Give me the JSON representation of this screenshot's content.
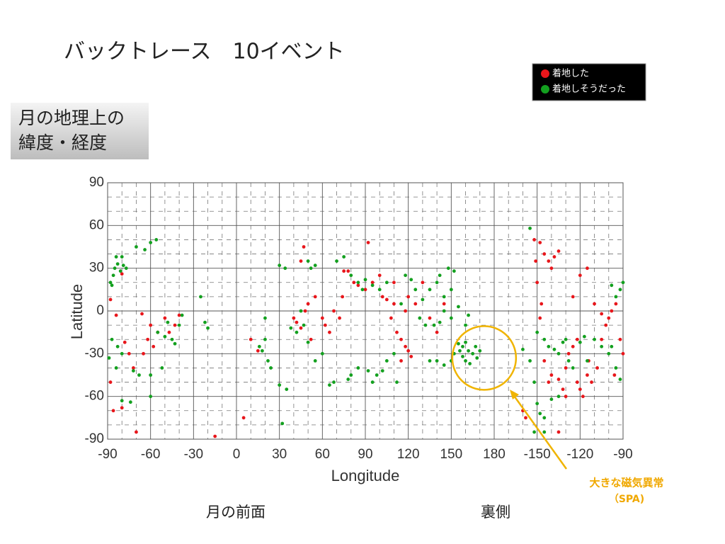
{
  "chart_data": {
    "type": "scatter",
    "title": "バックトレース　10イベント",
    "subtitle_box": [
      "月の地理上の",
      "緯度・経度"
    ],
    "xlabel": "Longitude",
    "ylabel": "Latitude",
    "annotations": {
      "anomaly": "大きな磁気異常",
      "anomaly_sub": "（SPA)",
      "near_side": "月の前面",
      "far_side": "裏側"
    },
    "xlim": [
      -90,
      270
    ],
    "ylim": [
      -90,
      90
    ],
    "xticks": [
      -90,
      -60,
      -30,
      0,
      30,
      60,
      90,
      120,
      150,
      180,
      {
        "value": 210,
        "label": "-150"
      },
      {
        "value": 240,
        "label": "-120"
      },
      {
        "value": 270,
        "label": "-90"
      }
    ],
    "yticks": [
      -90,
      -60,
      -30,
      0,
      30,
      60,
      90
    ],
    "grid": true,
    "legend": "upper right",
    "series": [
      {
        "name": "着地した",
        "color": "#e8161b",
        "x": [
          -88,
          -86,
          -80,
          -70,
          -84,
          -78,
          -75,
          -72,
          -66,
          -60,
          -58,
          -55,
          -50,
          -47,
          -43,
          -40,
          -62,
          -65,
          -80,
          -88,
          -15,
          5,
          10,
          15,
          40,
          42,
          45,
          48,
          50,
          52,
          55,
          47,
          45,
          60,
          62,
          65,
          68,
          72,
          74,
          75,
          78,
          82,
          85,
          90,
          92,
          95,
          100,
          102,
          105,
          108,
          110,
          112,
          115,
          118,
          120,
          122,
          115,
          118,
          120,
          125,
          110,
          130,
          135,
          140,
          145,
          200,
          202,
          208,
          212,
          215,
          218,
          220,
          222,
          225,
          210,
          212,
          215,
          218,
          220,
          225,
          228,
          230,
          232,
          235,
          238,
          240,
          242,
          245,
          248,
          252,
          255,
          258,
          260,
          262,
          265,
          268,
          270,
          264,
          246,
          238,
          225,
          230,
          235,
          240,
          245,
          250,
          255,
          213,
          209
        ],
        "values": [
          -50,
          -70,
          -68,
          -85,
          -3,
          -22,
          -30,
          -40,
          -2,
          -10,
          -25,
          -15,
          -5,
          -15,
          -10,
          -3,
          -20,
          -30,
          26,
          8,
          -88,
          -75,
          -20,
          -28,
          -5,
          -8,
          -12,
          0,
          5,
          -20,
          10,
          45,
          35,
          -5,
          -10,
          -15,
          0,
          -5,
          10,
          28,
          28,
          20,
          18,
          15,
          48,
          20,
          25,
          10,
          8,
          -5,
          5,
          -15,
          -20,
          -25,
          -28,
          -32,
          -35,
          0,
          10,
          5,
          20,
          20,
          -5,
          -15,
          5,
          -70,
          -75,
          50,
          48,
          40,
          35,
          30,
          38,
          42,
          20,
          -5,
          -35,
          -50,
          -45,
          -48,
          -55,
          -40,
          -30,
          -25,
          -50,
          -55,
          -60,
          -45,
          -50,
          -40,
          -20,
          -10,
          -5,
          0,
          5,
          -20,
          -30,
          -45,
          -35,
          -20,
          -85,
          -60,
          10,
          25,
          30,
          5,
          -2,
          5,
          35
        ]
      },
      {
        "name": "着地しそうだった",
        "color": "#13a01f",
        "x": [
          -88,
          -86,
          -85,
          -83,
          -81,
          -79,
          -77,
          -84,
          -80,
          -87,
          -70,
          -64,
          -60,
          -56,
          -87,
          -83,
          -80,
          -84,
          -89,
          -72,
          -68,
          -60,
          -52,
          -55,
          -50,
          -45,
          -40,
          -38,
          -43,
          -48,
          -80,
          -74,
          -60,
          -25,
          -22,
          -20,
          20,
          18,
          22,
          24,
          20,
          16,
          30,
          34,
          30,
          35,
          32,
          38,
          42,
          50,
          52,
          55,
          45,
          47,
          50,
          55,
          60,
          65,
          68,
          70,
          75,
          80,
          85,
          88,
          90,
          95,
          100,
          105,
          78,
          80,
          85,
          92,
          95,
          98,
          102,
          105,
          110,
          112,
          115,
          118,
          122,
          125,
          130,
          135,
          140,
          142,
          145,
          150,
          152,
          148,
          128,
          132,
          138,
          142,
          145,
          150,
          155,
          160,
          162,
          135,
          140,
          145,
          150,
          152,
          155,
          158,
          160,
          162,
          165,
          158,
          160,
          163,
          167,
          168,
          156,
          170,
          200,
          205,
          208,
          210,
          215,
          218,
          222,
          225,
          228,
          230,
          232,
          235,
          240,
          243,
          245,
          250,
          255,
          260,
          262,
          265,
          268,
          265,
          268,
          270,
          262,
          205,
          210,
          212,
          215,
          220,
          225,
          215,
          208
        ],
        "values": [
          20,
          25,
          30,
          33,
          28,
          32,
          30,
          38,
          38,
          18,
          45,
          43,
          48,
          50,
          -20,
          -25,
          -30,
          -40,
          -33,
          -42,
          -45,
          -45,
          -40,
          -15,
          -18,
          -20,
          -10,
          -3,
          -23,
          -8,
          -63,
          -64,
          -60,
          10,
          -8,
          -12,
          -20,
          -28,
          -35,
          -40,
          -5,
          -25,
          32,
          30,
          -52,
          -55,
          -79,
          -12,
          -15,
          35,
          30,
          32,
          0,
          -10,
          -22,
          -35,
          -30,
          -52,
          -50,
          35,
          38,
          25,
          20,
          15,
          22,
          18,
          15,
          20,
          -48,
          -45,
          -40,
          -42,
          -50,
          -45,
          -42,
          -35,
          -30,
          -50,
          5,
          25,
          22,
          15,
          8,
          15,
          20,
          25,
          10,
          15,
          28,
          30,
          -5,
          -10,
          -10,
          -8,
          0,
          -5,
          3,
          -10,
          -3,
          -35,
          -35,
          -38,
          -35,
          -30,
          -23,
          -25,
          -22,
          -28,
          -30,
          -32,
          -35,
          -37,
          -25,
          -33,
          -28,
          -28,
          -27,
          -35,
          -50,
          -15,
          -20,
          -25,
          -27,
          -30,
          -22,
          -20,
          -35,
          -40,
          -22,
          -18,
          -35,
          -20,
          -25,
          -30,
          -25,
          -40,
          -48,
          10,
          15,
          20,
          18,
          58,
          -65,
          -72,
          -75,
          -62,
          -60,
          -85,
          -85
        ]
      }
    ]
  }
}
